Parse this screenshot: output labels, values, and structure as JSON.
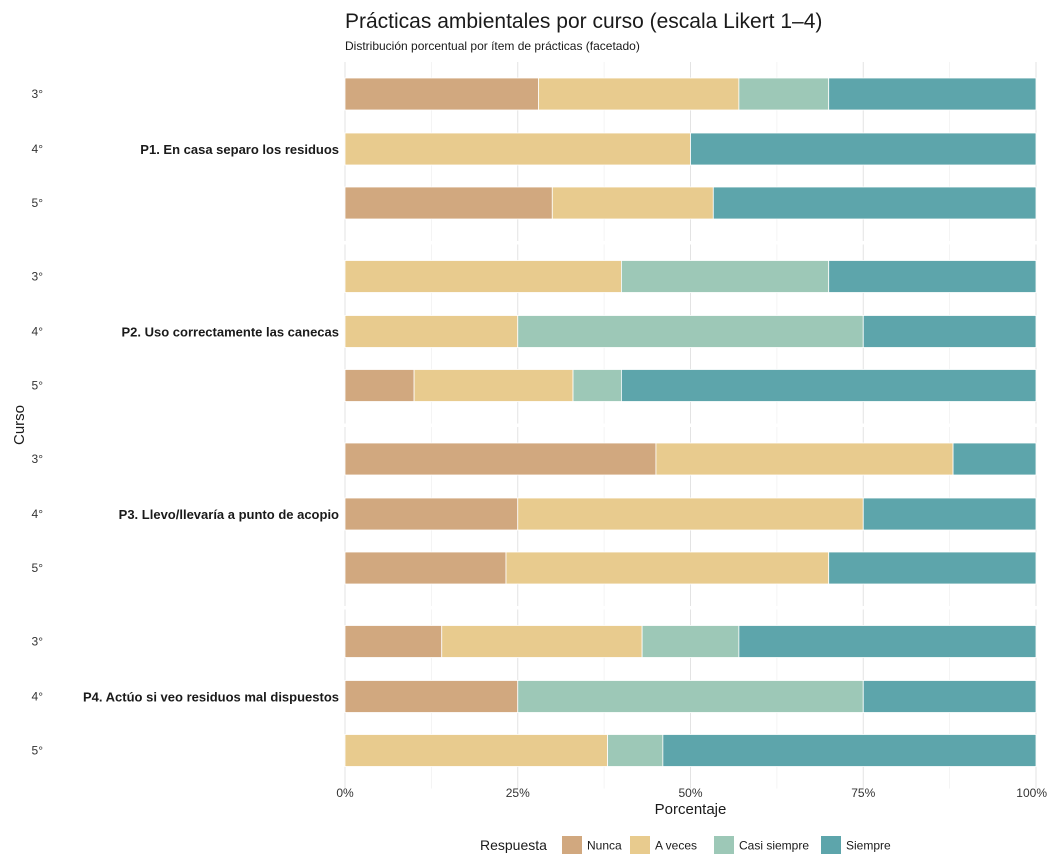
{
  "chart_data": {
    "type": "bar",
    "orientation": "horizontal",
    "stacked": true,
    "title": "Prácticas ambientales por curso (escala Likert 1–4)",
    "subtitle": "Distribución porcentual por ítem de prácticas (facetado)",
    "xlabel": "Porcentaje",
    "ylabel": "Curso",
    "xlim": [
      0,
      100
    ],
    "x_ticks": [
      "0%",
      "25%",
      "50%",
      "75%",
      "100%"
    ],
    "grid": true,
    "legend": {
      "title": "Respuesta",
      "position": "bottom",
      "entries": [
        "Nunca",
        "A veces",
        "Casi siempre",
        "Siempre"
      ]
    },
    "colors": {
      "Nunca": "#D1A87F",
      "A veces": "#E8CB8E",
      "Casi siempre": "#9DC8B7",
      "Siempre": "#5DA5AB"
    },
    "facets": [
      {
        "label": "P1. En casa separo los residuos",
        "rows": [
          {
            "curso": "3°",
            "values": [
              28,
              29,
              13,
              30
            ]
          },
          {
            "curso": "4°",
            "values": [
              0,
              50,
              0,
              50
            ]
          },
          {
            "curso": "5°",
            "values": [
              30,
              23.3,
              0,
              46.7
            ]
          }
        ]
      },
      {
        "label": "P2. Uso correctamente las canecas",
        "rows": [
          {
            "curso": "3°",
            "values": [
              0,
              40,
              30,
              30
            ]
          },
          {
            "curso": "4°",
            "values": [
              0,
              25,
              50,
              25
            ]
          },
          {
            "curso": "5°",
            "values": [
              10,
              23,
              7,
              60
            ]
          }
        ]
      },
      {
        "label": "P3. Llevo/llevaría a punto de acopio",
        "rows": [
          {
            "curso": "3°",
            "values": [
              45,
              43,
              0,
              12
            ]
          },
          {
            "curso": "4°",
            "values": [
              25,
              50,
              0,
              25
            ]
          },
          {
            "curso": "5°",
            "values": [
              23.3,
              46.7,
              0,
              30
            ]
          }
        ]
      },
      {
        "label": "P4. Actúo si veo residuos mal dispuestos",
        "rows": [
          {
            "curso": "3°",
            "values": [
              14,
              29,
              14,
              43
            ]
          },
          {
            "curso": "4°",
            "values": [
              25,
              0,
              50,
              25
            ]
          },
          {
            "curso": "5°",
            "values": [
              0,
              38,
              8,
              54
            ]
          }
        ]
      }
    ]
  }
}
